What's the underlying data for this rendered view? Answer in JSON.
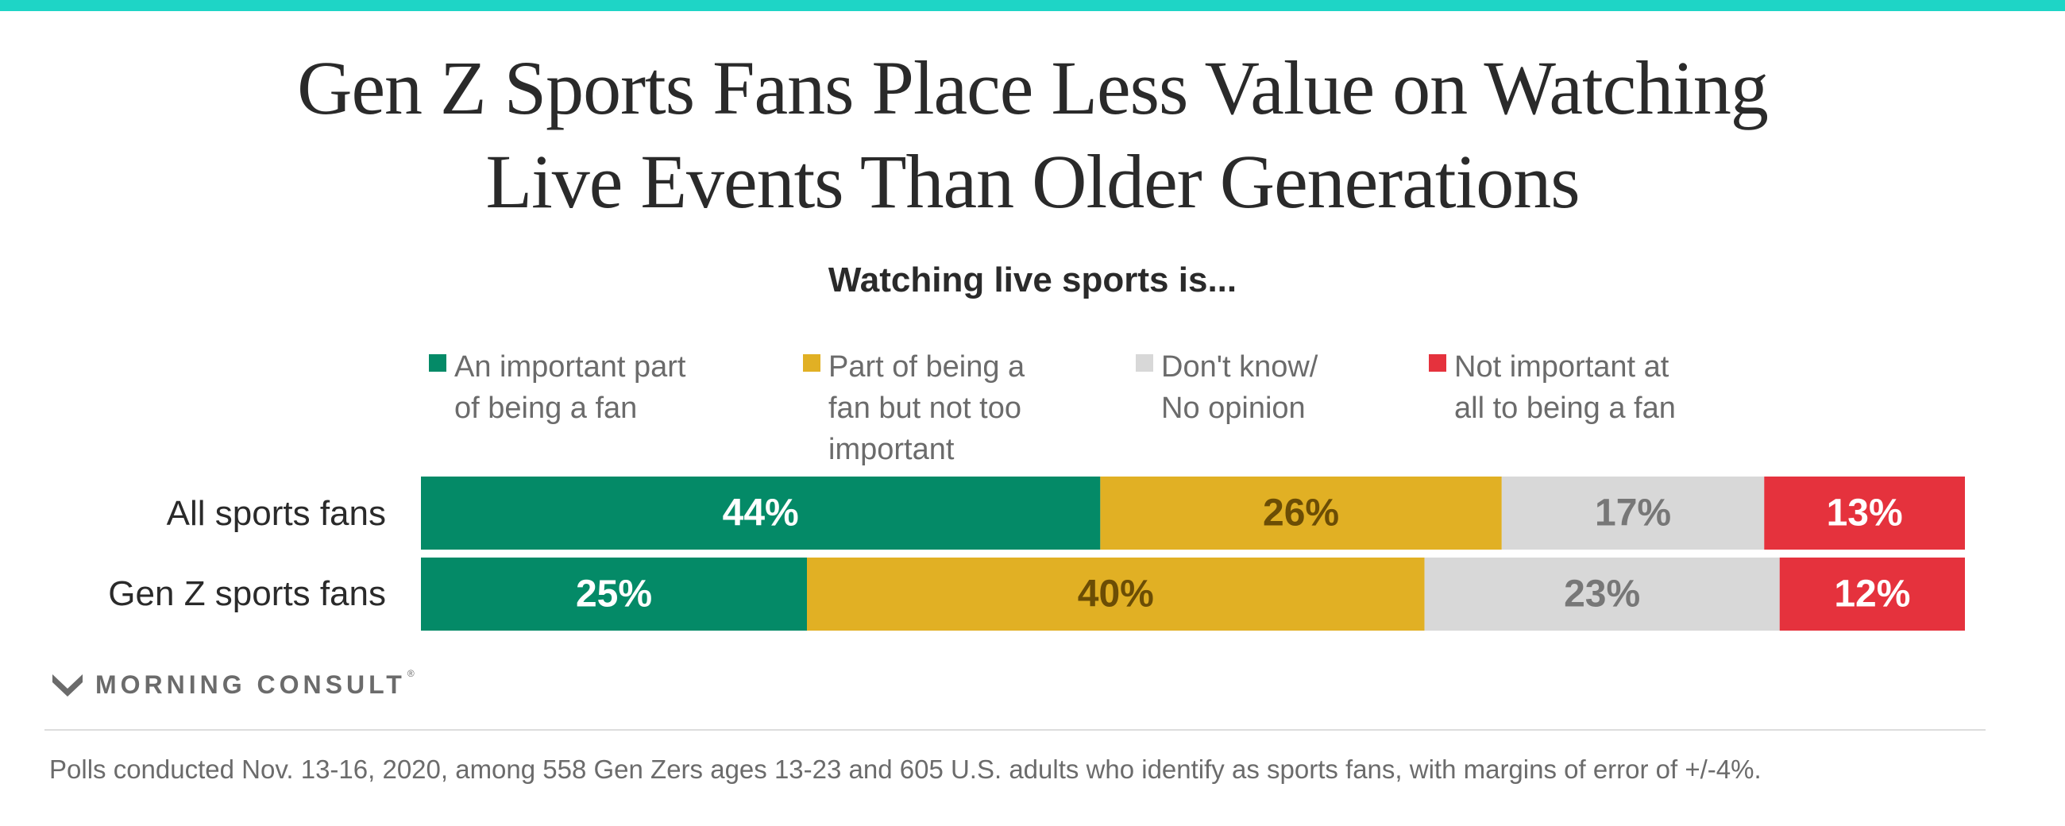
{
  "header": {
    "title_line1": "Gen Z Sports Fans Place Less Value on Watching",
    "title_line2": "Live Events Than Older Generations",
    "subtitle": "Watching live sports is..."
  },
  "chart_data": {
    "type": "bar",
    "orientation": "horizontal",
    "stacked": true,
    "normalized": true,
    "title": "Gen Z Sports Fans Place Less Value on Watching Live Events Than Older Generations",
    "subtitle": "Watching live sports is...",
    "categories": [
      "All sports fans",
      "Gen Z sports fans"
    ],
    "series": [
      {
        "name": "An important part of being a fan",
        "color": "#048a67",
        "label_color": "#ffffff",
        "values": [
          44,
          25
        ]
      },
      {
        "name": "Part of being a fan but not too important",
        "color": "#e1b024",
        "label_color": "#6b4d05",
        "values": [
          26,
          40
        ]
      },
      {
        "name": "Don't know/ No opinion",
        "color": "#d8d8d8",
        "label_color": "#777777",
        "values": [
          17,
          23
        ]
      },
      {
        "name": "Not important at all to being a fan",
        "color": "#e5323d",
        "label_color": "#ffffff",
        "values": [
          13,
          12
        ]
      }
    ],
    "value_suffix": "%",
    "xlim": [
      0,
      100
    ],
    "legend_position": "top",
    "grid": false
  },
  "legend": {
    "items": [
      {
        "line1": "An important part",
        "line2": "of being a fan",
        "line3": ""
      },
      {
        "line1": "Part of being a",
        "line2": "fan but not too",
        "line3": "important"
      },
      {
        "line1": "Don't know/",
        "line2": "No opinion",
        "line3": ""
      },
      {
        "line1": "Not important at",
        "line2": "all to being a fan",
        "line3": ""
      }
    ]
  },
  "brand": {
    "name": "MORNING CONSULT",
    "reg": "®",
    "icon": "morning-consult-logo-icon"
  },
  "footer": {
    "note": "Polls conducted Nov. 13-16, 2020, among 558 Gen Zers ages 13-23 and 605 U.S. adults who identify as sports fans, with margins of error of +/-4%."
  }
}
